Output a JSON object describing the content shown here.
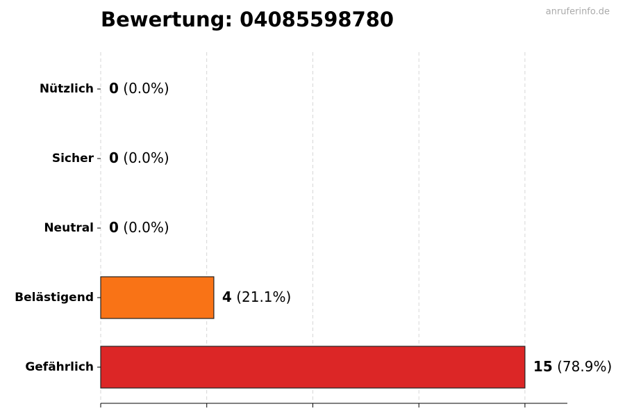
{
  "chart_data": {
    "type": "barh",
    "title": "Bewertung: 04085598780",
    "watermark": "anruferinfo.de",
    "categories": [
      "Nützlich",
      "Sicher",
      "Neutral",
      "Belästigend",
      "Gefährlich"
    ],
    "values": [
      0,
      0,
      0,
      4,
      15
    ],
    "share_labels": [
      "(0.0%)",
      "(0.0%)",
      "(0.0%)",
      "(21.1%)",
      "(78.9%)"
    ],
    "colors": [
      "#22c55e",
      "#3b82f6",
      "#9ca3af",
      "#f97316",
      "#dc2626"
    ],
    "xlim": [
      0,
      16.5
    ],
    "xticks": [
      0,
      3.75,
      7.5,
      11.25,
      15
    ],
    "grid": true
  }
}
